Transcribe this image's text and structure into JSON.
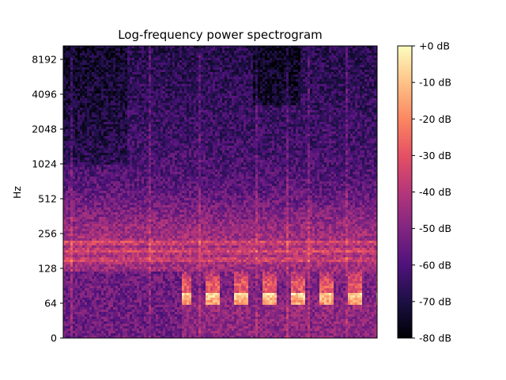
{
  "chart_data": {
    "type": "heatmap",
    "title": "Log-frequency power spectrogram",
    "xlabel": "",
    "ylabel": "Hz",
    "y_scale": "log",
    "y_ticks": [
      {
        "value": 0,
        "label": "0"
      },
      {
        "value": 64,
        "label": "64"
      },
      {
        "value": 128,
        "label": "128"
      },
      {
        "value": 256,
        "label": "256"
      },
      {
        "value": 512,
        "label": "512"
      },
      {
        "value": 1024,
        "label": "1024"
      },
      {
        "value": 2048,
        "label": "2048"
      },
      {
        "value": 4096,
        "label": "4096"
      },
      {
        "value": 8192,
        "label": "8192"
      }
    ],
    "x_ticks": [],
    "colormap": "magma",
    "colorbar": {
      "range": [
        -80,
        0
      ],
      "ticks": [
        {
          "value": 0,
          "label": "+0 dB"
        },
        {
          "value": -10,
          "label": "-10 dB"
        },
        {
          "value": -20,
          "label": "-20 dB"
        },
        {
          "value": -30,
          "label": "-30 dB"
        },
        {
          "value": -40,
          "label": "-40 dB"
        },
        {
          "value": -50,
          "label": "-50 dB"
        },
        {
          "value": -60,
          "label": "-60 dB"
        },
        {
          "value": -70,
          "label": "-70 dB"
        },
        {
          "value": -80,
          "label": "-80 dB"
        }
      ]
    },
    "colors": [
      "#000004",
      "#1c1044",
      "#4f127b",
      "#812581",
      "#b5367a",
      "#e55064",
      "#fb8761",
      "#fec287",
      "#fcfdbf"
    ]
  }
}
